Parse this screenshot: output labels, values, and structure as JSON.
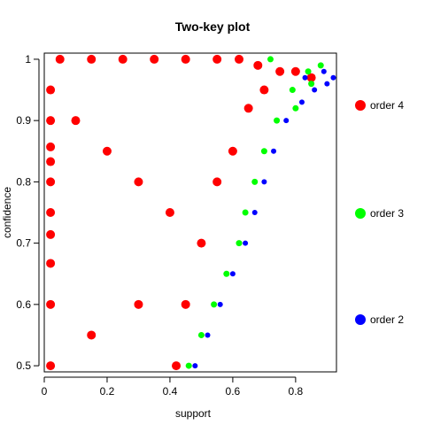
{
  "chart_data": {
    "type": "scatter",
    "title": "Two-key plot",
    "xlabel": "support",
    "ylabel": "confidence",
    "xlim": [
      0.0,
      0.93
    ],
    "ylim": [
      0.49,
      1.01
    ],
    "x_ticks": [
      0,
      0.2,
      0.4,
      0.6,
      0.8
    ],
    "x_tick_labels": [
      "0",
      "0.2",
      "0.4",
      "0.6",
      "0.8"
    ],
    "y_ticks": [
      0.5,
      0.6,
      0.7,
      0.8,
      0.9,
      1.0
    ],
    "y_tick_labels": [
      "0.5",
      "0.6",
      "0.7",
      "0.8",
      "0.9",
      "1"
    ],
    "grid": false,
    "legend_position": "right",
    "series": [
      {
        "name": "order 4",
        "color": "#ff0000",
        "points": [
          [
            0.05,
            1.0
          ],
          [
            0.15,
            1.0
          ],
          [
            0.25,
            1.0
          ],
          [
            0.35,
            1.0
          ],
          [
            0.45,
            1.0
          ],
          [
            0.55,
            1.0
          ],
          [
            0.62,
            1.0
          ],
          [
            0.68,
            0.99
          ],
          [
            0.02,
            0.95
          ],
          [
            0.02,
            0.9
          ],
          [
            0.02,
            0.857
          ],
          [
            0.02,
            0.833
          ],
          [
            0.02,
            0.8
          ],
          [
            0.02,
            0.75
          ],
          [
            0.02,
            0.714
          ],
          [
            0.02,
            0.667
          ],
          [
            0.02,
            0.6
          ],
          [
            0.02,
            0.5
          ],
          [
            0.1,
            0.9
          ],
          [
            0.2,
            0.85
          ],
          [
            0.3,
            0.8
          ],
          [
            0.4,
            0.75
          ],
          [
            0.45,
            0.6
          ],
          [
            0.42,
            0.5
          ],
          [
            0.5,
            0.7
          ],
          [
            0.55,
            0.8
          ],
          [
            0.6,
            0.85
          ],
          [
            0.65,
            0.92
          ],
          [
            0.7,
            0.95
          ],
          [
            0.75,
            0.98
          ],
          [
            0.8,
            0.98
          ],
          [
            0.85,
            0.97
          ],
          [
            0.3,
            0.6
          ],
          [
            0.15,
            0.55
          ]
        ]
      },
      {
        "name": "order 3",
        "color": "#00ff00",
        "points": [
          [
            0.46,
            0.5
          ],
          [
            0.5,
            0.55
          ],
          [
            0.54,
            0.6
          ],
          [
            0.58,
            0.65
          ],
          [
            0.62,
            0.7
          ],
          [
            0.64,
            0.75
          ],
          [
            0.67,
            0.8
          ],
          [
            0.7,
            0.85
          ],
          [
            0.74,
            0.9
          ],
          [
            0.79,
            0.95
          ],
          [
            0.84,
            0.98
          ],
          [
            0.88,
            0.99
          ],
          [
            0.72,
            1.0
          ],
          [
            0.8,
            0.92
          ],
          [
            0.85,
            0.96
          ]
        ]
      },
      {
        "name": "order 2",
        "color": "#0000ff",
        "points": [
          [
            0.48,
            0.5
          ],
          [
            0.52,
            0.55
          ],
          [
            0.56,
            0.6
          ],
          [
            0.6,
            0.65
          ],
          [
            0.64,
            0.7
          ],
          [
            0.67,
            0.75
          ],
          [
            0.7,
            0.8
          ],
          [
            0.73,
            0.85
          ],
          [
            0.77,
            0.9
          ],
          [
            0.82,
            0.93
          ],
          [
            0.86,
            0.95
          ],
          [
            0.9,
            0.96
          ],
          [
            0.92,
            0.97
          ],
          [
            0.89,
            0.98
          ],
          [
            0.83,
            0.97
          ]
        ]
      }
    ]
  }
}
